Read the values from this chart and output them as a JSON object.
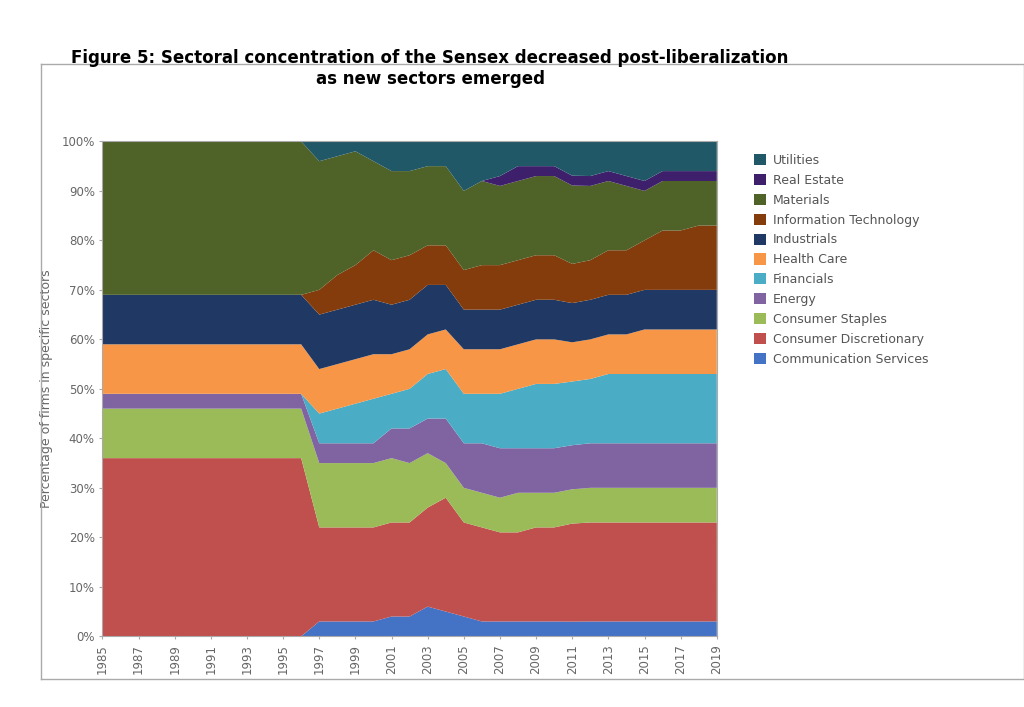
{
  "title": "Figure 5: Sectoral concentration of the Sensex decreased post-liberalization\nas new sectors emerged",
  "ylabel": "Percentage of firms in specific sectors",
  "years": [
    1985,
    1986,
    1987,
    1988,
    1989,
    1990,
    1991,
    1992,
    1993,
    1994,
    1995,
    1996,
    1997,
    1998,
    1999,
    2000,
    2001,
    2002,
    2003,
    2004,
    2005,
    2006,
    2007,
    2008,
    2009,
    2010,
    2011,
    2012,
    2013,
    2014,
    2015,
    2016,
    2017,
    2018,
    2019
  ],
  "sectors": [
    "Communication Services",
    "Consumer Discretionary",
    "Consumer Staples",
    "Energy",
    "Financials",
    "Health Care",
    "Industrials",
    "Information Technology",
    "Materials",
    "Real Estate",
    "Utilities"
  ],
  "colors": [
    "#4472C4",
    "#C0504D",
    "#9BBB59",
    "#8064A2",
    "#4BACC6",
    "#F79646",
    "#1F3864",
    "#843C0C",
    "#4F6228",
    "#3E1F6B",
    "#215868"
  ],
  "data": {
    "Communication Services": [
      0,
      0,
      0,
      0,
      0,
      0,
      0,
      0,
      0,
      0,
      0,
      0,
      3,
      3,
      3,
      3,
      4,
      4,
      6,
      5,
      4,
      3,
      3,
      3,
      3,
      3,
      3,
      3,
      3,
      3,
      3,
      3,
      3,
      3,
      3
    ],
    "Consumer Discretionary": [
      36,
      36,
      36,
      36,
      36,
      36,
      36,
      36,
      36,
      36,
      36,
      36,
      19,
      19,
      19,
      19,
      19,
      19,
      20,
      23,
      19,
      19,
      18,
      18,
      19,
      19,
      20,
      20,
      20,
      20,
      20,
      20,
      20,
      20,
      20
    ],
    "Consumer Staples": [
      10,
      10,
      10,
      10,
      10,
      10,
      10,
      10,
      10,
      10,
      10,
      10,
      13,
      13,
      13,
      13,
      13,
      12,
      11,
      7,
      7,
      7,
      7,
      8,
      7,
      7,
      7,
      7,
      7,
      7,
      7,
      7,
      7,
      7,
      7
    ],
    "Energy": [
      3,
      3,
      3,
      3,
      3,
      3,
      3,
      3,
      3,
      3,
      3,
      3,
      4,
      4,
      4,
      4,
      6,
      7,
      7,
      9,
      9,
      10,
      10,
      9,
      9,
      9,
      9,
      9,
      9,
      9,
      9,
      9,
      9,
      9,
      9
    ],
    "Financials": [
      0,
      0,
      0,
      0,
      0,
      0,
      0,
      0,
      0,
      0,
      0,
      0,
      6,
      7,
      8,
      9,
      7,
      8,
      9,
      10,
      10,
      10,
      11,
      12,
      13,
      13,
      13,
      13,
      14,
      14,
      14,
      14,
      14,
      14,
      14
    ],
    "Health Care": [
      10,
      10,
      10,
      10,
      10,
      10,
      10,
      10,
      10,
      10,
      10,
      10,
      9,
      9,
      9,
      9,
      8,
      8,
      8,
      8,
      9,
      9,
      9,
      9,
      9,
      9,
      8,
      8,
      8,
      8,
      9,
      9,
      9,
      9,
      9
    ],
    "Industrials": [
      10,
      10,
      10,
      10,
      10,
      10,
      10,
      10,
      10,
      10,
      10,
      10,
      11,
      11,
      11,
      11,
      10,
      10,
      10,
      9,
      8,
      8,
      8,
      8,
      8,
      8,
      8,
      8,
      8,
      8,
      8,
      8,
      8,
      8,
      8
    ],
    "Information Technology": [
      0,
      0,
      0,
      0,
      0,
      0,
      0,
      0,
      0,
      0,
      0,
      0,
      5,
      7,
      8,
      10,
      9,
      9,
      8,
      8,
      8,
      9,
      9,
      9,
      9,
      9,
      8,
      8,
      9,
      9,
      10,
      12,
      12,
      13,
      13
    ],
    "Materials": [
      31,
      31,
      31,
      31,
      31,
      31,
      31,
      31,
      31,
      31,
      31,
      31,
      26,
      24,
      23,
      18,
      18,
      17,
      16,
      16,
      16,
      17,
      16,
      16,
      16,
      16,
      16,
      15,
      14,
      13,
      10,
      10,
      10,
      9,
      9
    ],
    "Real Estate": [
      0,
      0,
      0,
      0,
      0,
      0,
      0,
      0,
      0,
      0,
      0,
      0,
      0,
      0,
      0,
      0,
      0,
      0,
      0,
      0,
      0,
      0,
      2,
      3,
      2,
      2,
      2,
      2,
      2,
      2,
      2,
      2,
      2,
      2,
      2
    ],
    "Utilities": [
      0,
      0,
      0,
      0,
      0,
      0,
      0,
      0,
      0,
      0,
      0,
      0,
      4,
      3,
      2,
      4,
      6,
      6,
      5,
      5,
      10,
      8,
      7,
      5,
      5,
      5,
      7,
      7,
      6,
      7,
      8,
      6,
      6,
      6,
      6
    ]
  }
}
